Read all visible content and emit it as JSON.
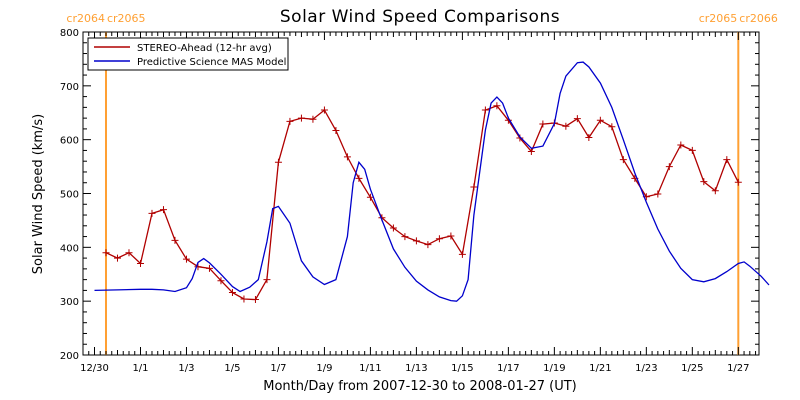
{
  "colors": {
    "stereo": "#b00000",
    "model": "#0000cc",
    "carrington": "#ffa033",
    "axes": "#000000"
  },
  "chart_data": {
    "type": "line",
    "title": "Solar Wind Speed Comparisons",
    "xlabel": "Month/Day from 2007-12-30 to 2008-01-27 (UT)",
    "ylabel": "Solar Wind Speed (km/s)",
    "xlim": [
      "2007-12-30",
      "2008-01-27"
    ],
    "ylim": [
      200,
      800
    ],
    "y_ticks": [
      200,
      300,
      400,
      500,
      600,
      700,
      800
    ],
    "x_ticks": [
      {
        "date": "2007-12-30",
        "label": "12/30"
      },
      {
        "date": "2008-01-01",
        "label": "1/1"
      },
      {
        "date": "2008-01-03",
        "label": "1/3"
      },
      {
        "date": "2008-01-05",
        "label": "1/5"
      },
      {
        "date": "2008-01-07",
        "label": "1/7"
      },
      {
        "date": "2008-01-09",
        "label": "1/9"
      },
      {
        "date": "2008-01-11",
        "label": "1/11"
      },
      {
        "date": "2008-01-13",
        "label": "1/13"
      },
      {
        "date": "2008-01-15",
        "label": "1/15"
      },
      {
        "date": "2008-01-17",
        "label": "1/17"
      },
      {
        "date": "2008-01-19",
        "label": "1/19"
      },
      {
        "date": "2008-01-21",
        "label": "1/21"
      },
      {
        "date": "2008-01-23",
        "label": "1/23"
      },
      {
        "date": "2008-01-25",
        "label": "1/25"
      },
      {
        "date": "2008-01-27",
        "label": "1/27"
      }
    ],
    "grid": false,
    "legend_position": "top-left",
    "series": [
      {
        "name": "STEREO-Ahead (12-hr avg)",
        "color": "#b00000",
        "marker": "plus",
        "points": [
          [
            "2007-12-30 12:00",
            390
          ],
          [
            "2007-12-31 00:00",
            380
          ],
          [
            "2007-12-31 12:00",
            390
          ],
          [
            "2008-01-01 00:00",
            370
          ],
          [
            "2008-01-01 12:00",
            463
          ],
          [
            "2008-01-02 00:00",
            470
          ],
          [
            "2008-01-02 12:00",
            413
          ],
          [
            "2008-01-03 00:00",
            378
          ],
          [
            "2008-01-03 12:00",
            364
          ],
          [
            "2008-01-04 00:00",
            361
          ],
          [
            "2008-01-04 12:00",
            338
          ],
          [
            "2008-01-05 00:00",
            316
          ],
          [
            "2008-01-05 12:00",
            304
          ],
          [
            "2008-01-06 00:00",
            303
          ],
          [
            "2008-01-06 12:00",
            340
          ],
          [
            "2008-01-07 00:00",
            558
          ],
          [
            "2008-01-07 12:00",
            634
          ],
          [
            "2008-01-08 00:00",
            640
          ],
          [
            "2008-01-08 12:00",
            638
          ],
          [
            "2008-01-09 00:00",
            655
          ],
          [
            "2008-01-09 12:00",
            617
          ],
          [
            "2008-01-10 00:00",
            568
          ],
          [
            "2008-01-10 12:00",
            528
          ],
          [
            "2008-01-11 00:00",
            493
          ],
          [
            "2008-01-11 12:00",
            455
          ],
          [
            "2008-01-12 00:00",
            436
          ],
          [
            "2008-01-12 12:00",
            420
          ],
          [
            "2008-01-13 00:00",
            412
          ],
          [
            "2008-01-13 12:00",
            405
          ],
          [
            "2008-01-14 00:00",
            416
          ],
          [
            "2008-01-14 12:00",
            421
          ],
          [
            "2008-01-15 00:00",
            387
          ],
          [
            "2008-01-15 12:00",
            512
          ],
          [
            "2008-01-16 00:00",
            655
          ],
          [
            "2008-01-16 12:00",
            663
          ],
          [
            "2008-01-17 00:00",
            636
          ],
          [
            "2008-01-17 12:00",
            603
          ],
          [
            "2008-01-18 00:00",
            578
          ],
          [
            "2008-01-18 12:00",
            629
          ],
          [
            "2008-01-19 00:00",
            631
          ],
          [
            "2008-01-19 12:00",
            625
          ],
          [
            "2008-01-20 00:00",
            639
          ],
          [
            "2008-01-20 12:00",
            604
          ],
          [
            "2008-01-21 00:00",
            636
          ],
          [
            "2008-01-21 12:00",
            624
          ],
          [
            "2008-01-22 00:00",
            563
          ],
          [
            "2008-01-22 12:00",
            528
          ],
          [
            "2008-01-23 00:00",
            494
          ],
          [
            "2008-01-23 12:00",
            499
          ],
          [
            "2008-01-24 00:00",
            550
          ],
          [
            "2008-01-24 12:00",
            590
          ],
          [
            "2008-01-25 00:00",
            580
          ],
          [
            "2008-01-25 12:00",
            522
          ],
          [
            "2008-01-26 00:00",
            505
          ],
          [
            "2008-01-26 12:00",
            563
          ],
          [
            "2008-01-27 00:00",
            521
          ]
        ]
      },
      {
        "name": "Predictive Science MAS Model",
        "color": "#0000cc",
        "marker": "none",
        "points": [
          [
            "2007-12-30 00:00",
            320
          ],
          [
            "2007-12-31 00:00",
            321
          ],
          [
            "2008-01-01 00:00",
            322
          ],
          [
            "2008-01-01 12:00",
            322
          ],
          [
            "2008-01-02 00:00",
            321
          ],
          [
            "2008-01-02 12:00",
            318
          ],
          [
            "2008-01-03 00:00",
            325
          ],
          [
            "2008-01-03 06:00",
            342
          ],
          [
            "2008-01-03 12:00",
            372
          ],
          [
            "2008-01-03 18:00",
            379
          ],
          [
            "2008-01-04 00:00",
            371
          ],
          [
            "2008-01-04 12:00",
            350
          ],
          [
            "2008-01-05 00:00",
            327
          ],
          [
            "2008-01-05 08:00",
            318
          ],
          [
            "2008-01-05 18:00",
            326
          ],
          [
            "2008-01-06 03:00",
            340
          ],
          [
            "2008-01-06 12:00",
            410
          ],
          [
            "2008-01-06 18:00",
            472
          ],
          [
            "2008-01-07 00:00",
            476
          ],
          [
            "2008-01-07 12:00",
            445
          ],
          [
            "2008-01-08 00:00",
            375
          ],
          [
            "2008-01-08 12:00",
            345
          ],
          [
            "2008-01-09 00:00",
            331
          ],
          [
            "2008-01-09 12:00",
            340
          ],
          [
            "2008-01-10 00:00",
            420
          ],
          [
            "2008-01-10 06:00",
            520
          ],
          [
            "2008-01-10 12:00",
            558
          ],
          [
            "2008-01-10 18:00",
            545
          ],
          [
            "2008-01-11 00:00",
            508
          ],
          [
            "2008-01-11 12:00",
            451
          ],
          [
            "2008-01-12 00:00",
            397
          ],
          [
            "2008-01-12 12:00",
            363
          ],
          [
            "2008-01-13 00:00",
            337
          ],
          [
            "2008-01-13 12:00",
            321
          ],
          [
            "2008-01-14 00:00",
            308
          ],
          [
            "2008-01-14 12:00",
            301
          ],
          [
            "2008-01-14 18:00",
            300
          ],
          [
            "2008-01-15 00:00",
            310
          ],
          [
            "2008-01-15 06:00",
            340
          ],
          [
            "2008-01-15 12:00",
            460
          ],
          [
            "2008-01-16 00:00",
            618
          ],
          [
            "2008-01-16 06:00",
            668
          ],
          [
            "2008-01-16 12:00",
            679
          ],
          [
            "2008-01-16 18:00",
            668
          ],
          [
            "2008-01-17 00:00",
            640
          ],
          [
            "2008-01-17 12:00",
            605
          ],
          [
            "2008-01-18 00:00",
            584
          ],
          [
            "2008-01-18 12:00",
            588
          ],
          [
            "2008-01-19 00:00",
            630
          ],
          [
            "2008-01-19 06:00",
            686
          ],
          [
            "2008-01-19 12:00",
            718
          ],
          [
            "2008-01-20 00:00",
            743
          ],
          [
            "2008-01-20 06:00",
            744
          ],
          [
            "2008-01-20 12:00",
            735
          ],
          [
            "2008-01-21 00:00",
            705
          ],
          [
            "2008-01-21 12:00",
            660
          ],
          [
            "2008-01-22 00:00",
            600
          ],
          [
            "2008-01-22 12:00",
            538
          ],
          [
            "2008-01-23 00:00",
            484
          ],
          [
            "2008-01-23 12:00",
            434
          ],
          [
            "2008-01-24 00:00",
            393
          ],
          [
            "2008-01-24 12:00",
            361
          ],
          [
            "2008-01-25 00:00",
            340
          ],
          [
            "2008-01-25 12:00",
            336
          ],
          [
            "2008-01-26 00:00",
            342
          ],
          [
            "2008-01-26 12:00",
            355
          ],
          [
            "2008-01-27 00:00",
            370
          ],
          [
            "2008-01-27 06:00",
            373
          ],
          [
            "2008-01-27 12:00",
            365
          ],
          [
            "2008-01-28 00:00",
            346
          ],
          [
            "2008-01-28 08:00",
            330
          ]
        ]
      }
    ],
    "carrington_markers": [
      {
        "date": "2007-12-30 12:00",
        "label_left": "cr2064",
        "label_right": "cr2065",
        "side": "left"
      },
      {
        "date": "2008-01-27 00:00",
        "label_left": "cr2065",
        "label_right": "cr2066",
        "side": "right"
      }
    ]
  }
}
